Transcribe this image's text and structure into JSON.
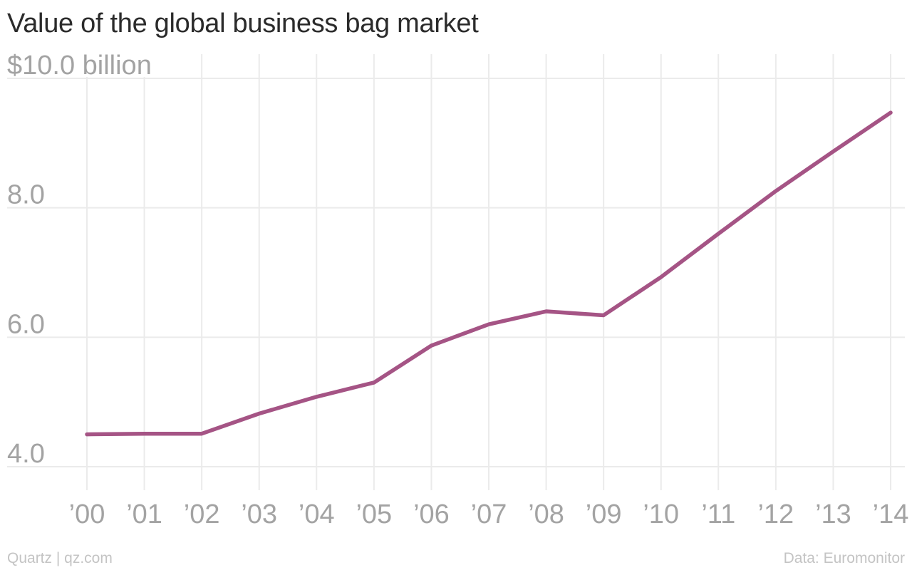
{
  "chart_data": {
    "type": "line",
    "title": "Value of the global business bag market",
    "xlabel": "",
    "ylabel": "",
    "categories": [
      "’00",
      "’01",
      "’02",
      "’03",
      "’04",
      "’05",
      "’06",
      "’07",
      "’08",
      "’09",
      "’10",
      "’11",
      "’12",
      "’13",
      "’14"
    ],
    "series": [
      {
        "values": [
          4.5,
          4.51,
          4.51,
          4.82,
          5.08,
          5.3,
          5.87,
          6.2,
          6.4,
          6.34,
          6.93,
          7.6,
          8.26,
          8.87,
          9.47
        ],
        "color": "#a55485"
      }
    ],
    "y_ticks": [
      4.0,
      6.0,
      8.0,
      10.0
    ],
    "y_tick_labels": [
      "4.0",
      "6.0",
      "8.0",
      "$10.0 billion"
    ],
    "ylim": [
      4.0,
      10.0
    ],
    "grid": true,
    "legend": "none"
  },
  "footer": {
    "left": "Quartz | qz.com",
    "right": "Data: Euromonitor"
  }
}
